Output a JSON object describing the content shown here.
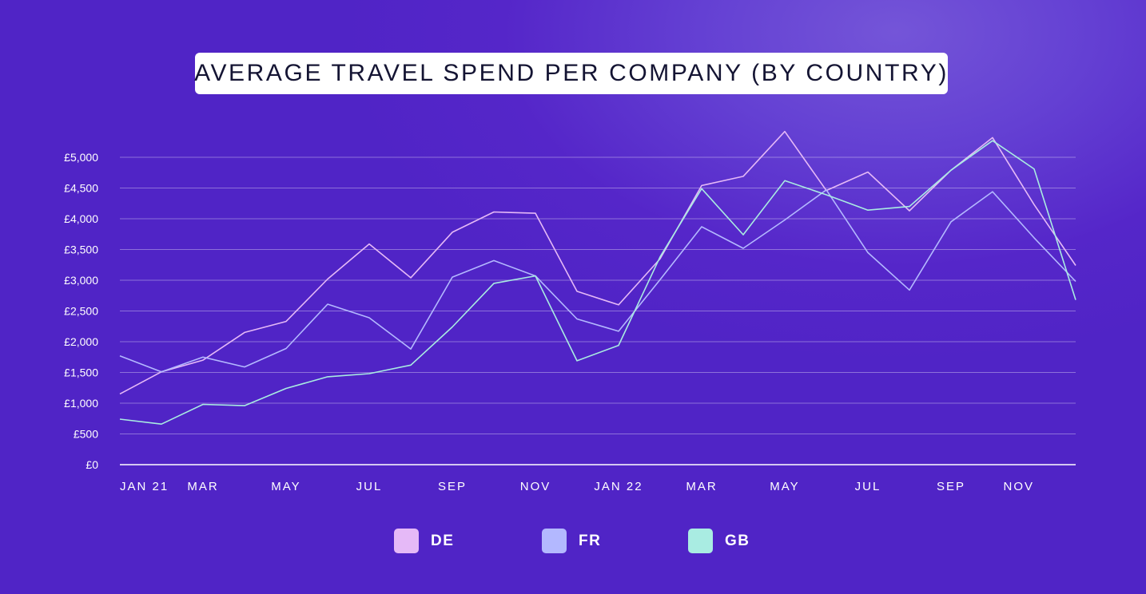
{
  "chart_data": {
    "type": "line",
    "title": "AVERAGE TRAVEL SPEND PER COMPANY (BY COUNTRY)",
    "xlabel": "",
    "ylabel": "",
    "ylim": [
      0,
      5000
    ],
    "yticks": [
      {
        "value": 0,
        "label": "£0"
      },
      {
        "value": 500,
        "label": "£500"
      },
      {
        "value": 1000,
        "label": "£1,000"
      },
      {
        "value": 1500,
        "label": "£1,500"
      },
      {
        "value": 2000,
        "label": "£2,000"
      },
      {
        "value": 2500,
        "label": "£2,500"
      },
      {
        "value": 3000,
        "label": "£3,000"
      },
      {
        "value": 3500,
        "label": "£3,500"
      },
      {
        "value": 4000,
        "label": "£4,000"
      },
      {
        "value": 4500,
        "label": "£4,500"
      },
      {
        "value": 5000,
        "label": "£5,000"
      }
    ],
    "x": [
      "Jan 2021",
      "Feb 2021",
      "Mar 2021",
      "Apr 2021",
      "May 2021",
      "Jun 2021",
      "Jul 2021",
      "Aug 2021",
      "Sep 2021",
      "Oct 2021",
      "Nov 2021",
      "Dec 2021",
      "Jan 2022",
      "Feb 2022",
      "Mar 2022",
      "Apr 2022",
      "May 2022",
      "Jun 2022",
      "Jul 2022",
      "Aug 2022",
      "Sep 2022",
      "Oct 2022",
      "Nov 2022",
      "Dec 2022"
    ],
    "xticks": [
      {
        "index": 0,
        "label": "JAN 21"
      },
      {
        "index": 2,
        "label": "MAR"
      },
      {
        "index": 4,
        "label": "MAY"
      },
      {
        "index": 6,
        "label": "JUL"
      },
      {
        "index": 8,
        "label": "SEP"
      },
      {
        "index": 10,
        "label": "NOV"
      },
      {
        "index": 12,
        "label": "JAN 22"
      },
      {
        "index": 14,
        "label": "MAR"
      },
      {
        "index": 16,
        "label": "MAY"
      },
      {
        "index": 18,
        "label": "JUL"
      },
      {
        "index": 20,
        "label": "SEP"
      },
      {
        "index": 22,
        "label": "NOV"
      }
    ],
    "series": [
      {
        "name": "DE",
        "color": "#e5b9f7",
        "values": [
          1150,
          1510,
          1700,
          2150,
          2330,
          3020,
          3590,
          3040,
          3780,
          4110,
          4090,
          2820,
          2600,
          3350,
          4540,
          4690,
          5420,
          4460,
          4760,
          4130,
          4790,
          5320,
          4230,
          3240
        ]
      },
      {
        "name": "FR",
        "color": "#b3b8ff",
        "values": [
          1770,
          1510,
          1750,
          1590,
          1890,
          2610,
          2390,
          1880,
          3050,
          3320,
          3070,
          2370,
          2170,
          3010,
          3870,
          3520,
          3980,
          4470,
          3450,
          2840,
          3950,
          4440,
          3690,
          2980
        ]
      },
      {
        "name": "GB",
        "color": "#a9ece2",
        "values": [
          740,
          660,
          980,
          960,
          1240,
          1430,
          1480,
          1620,
          2240,
          2950,
          3070,
          1690,
          1940,
          3380,
          4490,
          3740,
          4620,
          4390,
          4140,
          4200,
          4790,
          5270,
          4810,
          2680
        ]
      }
    ],
    "grid": true,
    "legend_position": "bottom"
  }
}
